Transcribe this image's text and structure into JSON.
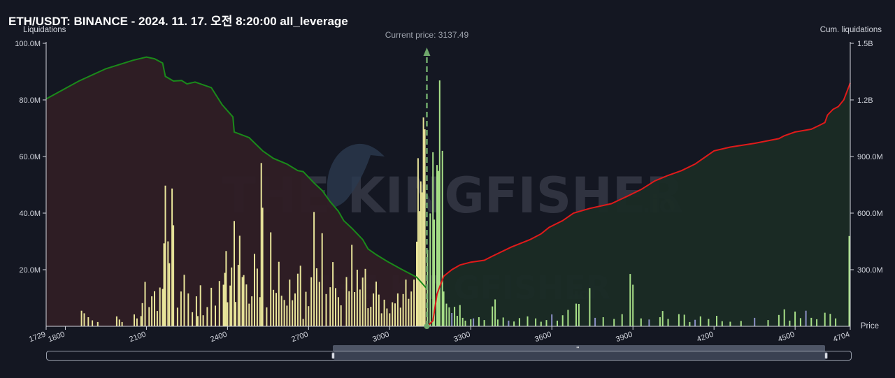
{
  "header": {
    "title": "ETH/USDT: BINANCE - 2024. 11. 17. 오전 8:20:00 all_leverage"
  },
  "colors": {
    "background": "#141722",
    "short_cum": "#e01a1a",
    "long_cum": "#1a8a1a",
    "short_area": "#1a2b25",
    "long_area": "#2f1d25",
    "bar_left": "#e8e49a",
    "bar_right": "#a8e088",
    "bar_alt": "#8c90c8",
    "price_line": "#6fa86b"
  },
  "watermark": {
    "main": "THE KINGFISHER",
    "suffix": ".io"
  },
  "chart_data": {
    "type": "bar",
    "left_axis": {
      "label": "Liquidations",
      "ticks": [
        "100.0M",
        "80.0M",
        "60.0M",
        "40.0M",
        "20.0M"
      ],
      "ylim": [
        0,
        100
      ]
    },
    "right_axis": {
      "label": "Cum. liquidations",
      "ticks": [
        "1.5B",
        "1.2B",
        "900.0M",
        "600.0M",
        "300.0M"
      ],
      "ylim": [
        0,
        1500
      ]
    },
    "x_axis": {
      "label": "Price",
      "ticks": [
        "1729",
        "1800",
        "2100",
        "2400",
        "2700",
        "3000",
        "3300",
        "3600",
        "3900",
        "4200",
        "4500",
        "4704"
      ],
      "xlim": [
        1729,
        4704
      ]
    },
    "current_price": {
      "label": "Current price: 3137.49",
      "value": 3137.49
    },
    "series": [
      {
        "name": "long_cumulative",
        "points": [
          [
            1729,
            1205
          ],
          [
            1850,
            1300
          ],
          [
            1950,
            1365
          ],
          [
            2050,
            1410
          ],
          [
            2100,
            1427
          ],
          [
            2130,
            1418
          ],
          [
            2160,
            1395
          ],
          [
            2170,
            1325
          ],
          [
            2200,
            1300
          ],
          [
            2230,
            1303
          ],
          [
            2250,
            1285
          ],
          [
            2280,
            1295
          ],
          [
            2310,
            1280
          ],
          [
            2340,
            1265
          ],
          [
            2380,
            1175
          ],
          [
            2420,
            1110
          ],
          [
            2425,
            1030
          ],
          [
            2480,
            1000
          ],
          [
            2530,
            930
          ],
          [
            2570,
            890
          ],
          [
            2620,
            860
          ],
          [
            2660,
            825
          ],
          [
            2680,
            820
          ],
          [
            2720,
            760
          ],
          [
            2750,
            720
          ],
          [
            2780,
            660
          ],
          [
            2810,
            610
          ],
          [
            2830,
            560
          ],
          [
            2860,
            520
          ],
          [
            2900,
            460
          ],
          [
            2920,
            410
          ],
          [
            2950,
            380
          ],
          [
            2990,
            345
          ],
          [
            3040,
            305
          ],
          [
            3100,
            260
          ],
          [
            3137,
            200
          ]
        ]
      },
      {
        "name": "short_cumulative",
        "points": [
          [
            3140,
            0
          ],
          [
            3160,
            30
          ],
          [
            3175,
            170
          ],
          [
            3180,
            190
          ],
          [
            3200,
            265
          ],
          [
            3230,
            300
          ],
          [
            3260,
            325
          ],
          [
            3300,
            340
          ],
          [
            3350,
            350
          ],
          [
            3380,
            372
          ],
          [
            3450,
            420
          ],
          [
            3520,
            460
          ],
          [
            3560,
            490
          ],
          [
            3590,
            525
          ],
          [
            3640,
            560
          ],
          [
            3680,
            600
          ],
          [
            3740,
            625
          ],
          [
            3820,
            650
          ],
          [
            3880,
            690
          ],
          [
            3930,
            725
          ],
          [
            3980,
            770
          ],
          [
            4030,
            800
          ],
          [
            4080,
            825
          ],
          [
            4130,
            860
          ],
          [
            4170,
            900
          ],
          [
            4200,
            930
          ],
          [
            4260,
            950
          ],
          [
            4350,
            970
          ],
          [
            4440,
            995
          ],
          [
            4460,
            1010
          ],
          [
            4500,
            1030
          ],
          [
            4560,
            1045
          ],
          [
            4590,
            1065
          ],
          [
            4610,
            1080
          ],
          [
            4620,
            1120
          ],
          [
            4640,
            1150
          ],
          [
            4660,
            1165
          ],
          [
            4680,
            1200
          ],
          [
            4704,
            1290
          ]
        ]
      },
      {
        "name": "liquidation_bars",
        "points": [
          [
            1860,
            5.5
          ],
          [
            1870,
            4.6
          ],
          [
            1885,
            3.2
          ],
          [
            1900,
            2.1
          ],
          [
            1920,
            1.5
          ],
          [
            1990,
            3.5
          ],
          [
            2000,
            2.4
          ],
          [
            2010,
            1.5
          ],
          [
            2055,
            4.2
          ],
          [
            2065,
            2.8
          ],
          [
            2080,
            3.6
          ],
          [
            2085,
            8.2
          ],
          [
            2095,
            15.7
          ],
          [
            2110,
            6.8
          ],
          [
            2120,
            10.6
          ],
          [
            2130,
            12.4
          ],
          [
            2140,
            5.4
          ],
          [
            2150,
            13.7
          ],
          [
            2160,
            13.2
          ],
          [
            2165,
            29.3
          ],
          [
            2170,
            49.7
          ],
          [
            2180,
            30.0
          ],
          [
            2185,
            22.3
          ],
          [
            2195,
            48.7
          ],
          [
            2200,
            35.7
          ],
          [
            2215,
            6.6
          ],
          [
            2228,
            12.3
          ],
          [
            2240,
            18.2
          ],
          [
            2255,
            11.6
          ],
          [
            2270,
            5.0
          ],
          [
            2285,
            10.6
          ],
          [
            2290,
            3.6
          ],
          [
            2300,
            14.5
          ],
          [
            2310,
            3.9
          ],
          [
            2325,
            6.8
          ],
          [
            2340,
            13.6
          ],
          [
            2355,
            7.3
          ],
          [
            2370,
            16.0
          ],
          [
            2385,
            14.7
          ],
          [
            2390,
            18.9
          ],
          [
            2395,
            26.6
          ],
          [
            2400,
            8.5
          ],
          [
            2410,
            14.4
          ],
          [
            2415,
            20.8
          ],
          [
            2425,
            37.2
          ],
          [
            2430,
            8.6
          ],
          [
            2440,
            21.7
          ],
          [
            2445,
            32.0
          ],
          [
            2455,
            17.4
          ],
          [
            2460,
            18.1
          ],
          [
            2470,
            14.8
          ],
          [
            2480,
            8.0
          ],
          [
            2490,
            10.6
          ],
          [
            2500,
            25.6
          ],
          [
            2510,
            20.4
          ],
          [
            2520,
            10.3
          ],
          [
            2525,
            57.7
          ],
          [
            2530,
            41.9
          ],
          [
            2545,
            6.7
          ],
          [
            2560,
            33.2
          ],
          [
            2570,
            12.9
          ],
          [
            2580,
            11.8
          ],
          [
            2590,
            22.8
          ],
          [
            2600,
            10.8
          ],
          [
            2610,
            9.3
          ],
          [
            2620,
            7.3
          ],
          [
            2630,
            16.5
          ],
          [
            2640,
            9.2
          ],
          [
            2650,
            11.6
          ],
          [
            2660,
            18.6
          ],
          [
            2670,
            21.4
          ],
          [
            2680,
            2.6
          ],
          [
            2690,
            12.2
          ],
          [
            2700,
            7.1
          ],
          [
            2710,
            17.3
          ],
          [
            2720,
            40.4
          ],
          [
            2730,
            20.5
          ],
          [
            2740,
            15.7
          ],
          [
            2750,
            32.9
          ],
          [
            2765,
            11.4
          ],
          [
            2780,
            13.8
          ],
          [
            2790,
            22.7
          ],
          [
            2800,
            13.5
          ],
          [
            2810,
            10.3
          ],
          [
            2820,
            7.4
          ],
          [
            2840,
            17.4
          ],
          [
            2850,
            12.4
          ],
          [
            2860,
            28.8
          ],
          [
            2870,
            12.1
          ],
          [
            2880,
            20.0
          ],
          [
            2890,
            13.0
          ],
          [
            2900,
            17.2
          ],
          [
            2910,
            20.3
          ],
          [
            2920,
            6.4
          ],
          [
            2930,
            6.9
          ],
          [
            2940,
            11.6
          ],
          [
            2950,
            15.8
          ],
          [
            2960,
            11.2
          ],
          [
            2970,
            4.6
          ],
          [
            2980,
            9.4
          ],
          [
            2990,
            6.3
          ],
          [
            3000,
            4.6
          ],
          [
            3010,
            8.5
          ],
          [
            3020,
            8.1
          ],
          [
            3030,
            11.6
          ],
          [
            3040,
            6.6
          ],
          [
            3050,
            11.4
          ],
          [
            3060,
            16.5
          ],
          [
            3070,
            9.7
          ],
          [
            3080,
            12.3
          ],
          [
            3090,
            16.5
          ],
          [
            3100,
            29.9
          ],
          [
            3105,
            59.4
          ],
          [
            3110,
            40.7
          ],
          [
            3115,
            51.2
          ],
          [
            3120,
            47.3
          ],
          [
            3125,
            73.8
          ],
          [
            3130,
            69.6
          ],
          [
            3140,
            27.0
          ],
          [
            3150,
            39.9
          ],
          [
            3160,
            61.5
          ],
          [
            3165,
            37.7
          ],
          [
            3175,
            57.0
          ],
          [
            3180,
            54.9
          ],
          [
            3185,
            86.9
          ],
          [
            3195,
            62.0
          ],
          [
            3200,
            12.3
          ],
          [
            3210,
            8.0
          ],
          [
            3220,
            6.7
          ],
          [
            3230,
            4.7
          ],
          [
            3240,
            6.9
          ],
          [
            3250,
            3.7
          ],
          [
            3260,
            7.5
          ],
          [
            3270,
            3.0
          ],
          [
            3280,
            2.0
          ],
          [
            3300,
            2.5
          ],
          [
            3310,
            2.8
          ],
          [
            3330,
            3.2
          ],
          [
            3350,
            2.2
          ],
          [
            3380,
            7.0
          ],
          [
            3390,
            9.5
          ],
          [
            3400,
            2.4
          ],
          [
            3420,
            3.1
          ],
          [
            3440,
            2.0
          ],
          [
            3460,
            1.7
          ],
          [
            3480,
            2.9
          ],
          [
            3510,
            3.5
          ],
          [
            3540,
            2.8
          ],
          [
            3560,
            1.6
          ],
          [
            3580,
            2.2
          ],
          [
            3600,
            4.2
          ],
          [
            3620,
            2.0
          ],
          [
            3640,
            3.9
          ],
          [
            3660,
            5.8
          ],
          [
            3690,
            8.0
          ],
          [
            3700,
            7.9
          ],
          [
            3740,
            13.5
          ],
          [
            3760,
            3.0
          ],
          [
            3790,
            3.2
          ],
          [
            3830,
            2.6
          ],
          [
            3860,
            4.3
          ],
          [
            3890,
            18.5
          ],
          [
            3900,
            14.7
          ],
          [
            3930,
            2.8
          ],
          [
            3960,
            2.4
          ],
          [
            4000,
            3.2
          ],
          [
            4010,
            5.4
          ],
          [
            4030,
            2.6
          ],
          [
            4070,
            4.3
          ],
          [
            4090,
            4.1
          ],
          [
            4110,
            1.5
          ],
          [
            4130,
            2.3
          ],
          [
            4150,
            3.5
          ],
          [
            4180,
            2.6
          ],
          [
            4210,
            3.7
          ],
          [
            4230,
            1.8
          ],
          [
            4260,
            1.6
          ],
          [
            4300,
            1.9
          ],
          [
            4350,
            3.0
          ],
          [
            4400,
            2.2
          ],
          [
            4440,
            4.0
          ],
          [
            4460,
            6.0
          ],
          [
            4480,
            2.0
          ],
          [
            4500,
            5.2
          ],
          [
            4520,
            2.9
          ],
          [
            4540,
            5.5
          ],
          [
            4560,
            3.0
          ],
          [
            4580,
            2.5
          ],
          [
            4610,
            4.8
          ],
          [
            4630,
            4.4
          ],
          [
            4650,
            2.8
          ],
          [
            4700,
            31.9
          ]
        ]
      }
    ]
  },
  "scrollbar": {
    "grip": "'''"
  }
}
